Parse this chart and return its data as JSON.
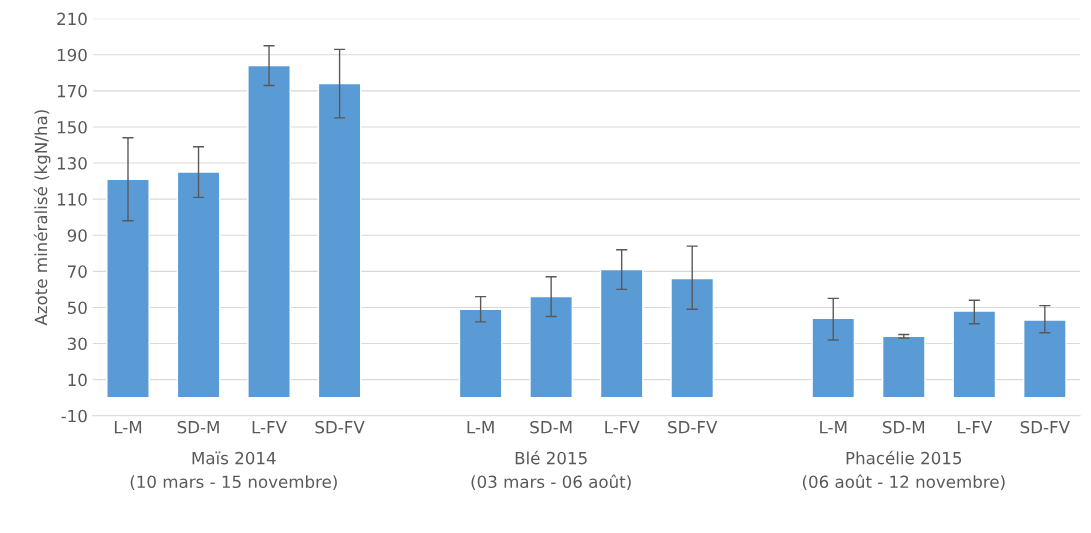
{
  "chart_data": {
    "type": "bar",
    "ylabel": "Azote minéralisé (kgN/ha)",
    "categories": [
      "L-M",
      "SD-M",
      "L-FV",
      "SD-FV",
      null,
      "L-M",
      "SD-M",
      "L-FV",
      "SD-FV",
      null,
      "L-M",
      "SD-M",
      "L-FV",
      "SD-FV"
    ],
    "values": [
      121,
      125,
      184,
      174,
      null,
      49,
      56,
      71,
      66,
      null,
      44,
      34,
      48,
      43
    ],
    "errors": [
      [
        98,
        144
      ],
      [
        111,
        139
      ],
      [
        173,
        195
      ],
      [
        155,
        193
      ],
      null,
      [
        42,
        56
      ],
      [
        45,
        67
      ],
      [
        60,
        82
      ],
      [
        49,
        84
      ],
      null,
      [
        32,
        55
      ],
      [
        33,
        35
      ],
      [
        41,
        54
      ],
      [
        36,
        51
      ]
    ],
    "color": "#5b9bd5",
    "annotations": [
      "Maïs 2014\n(10 mars - 15 novembre)",
      "Blé 2015\n(03 mars - 06 août)",
      "Phacélie 2015\n(06 août - 12 novembre)"
    ],
    "ylim": [
      -10,
      210
    ],
    "yticks": [
      -10,
      10,
      30,
      50,
      70,
      90,
      110,
      130,
      150,
      170,
      190,
      210
    ],
    "grid": "y"
  }
}
